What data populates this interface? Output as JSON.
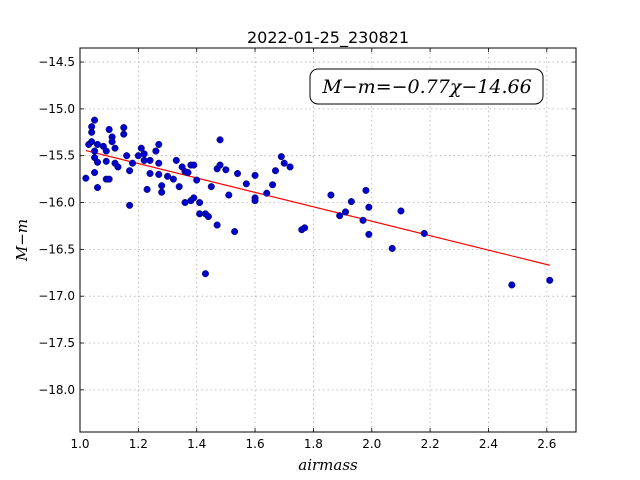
{
  "chart_data": {
    "type": "scatter",
    "title": "2022-01-25_230821",
    "xlabel": "airmass",
    "ylabel": "M−m",
    "xlim": [
      1.0,
      2.7
    ],
    "ylim": [
      -18.45,
      -14.35
    ],
    "y_inverted": true,
    "grid": true,
    "x_ticks": [
      1.0,
      1.2,
      1.4,
      1.6,
      1.8,
      2.0,
      2.2,
      2.4,
      2.6
    ],
    "x_tick_labels": [
      "1.0",
      "1.2",
      "1.4",
      "1.6",
      "1.8",
      "2.0",
      "2.2",
      "2.4",
      "2.6"
    ],
    "y_ticks": [
      -14.5,
      -15.0,
      -15.5,
      -16.0,
      -16.5,
      -17.0,
      -17.5,
      -18.0
    ],
    "y_tick_labels": [
      "−14.5",
      "−15.0",
      "−15.5",
      "−16.0",
      "−16.5",
      "−17.0",
      "−17.5",
      "−18.0"
    ],
    "annotation": "M−m=−0.77χ−14.66",
    "fit": {
      "slope": -0.77,
      "intercept": -14.66,
      "x_range": [
        1.02,
        2.61
      ],
      "color": "#ff0000"
    },
    "series": [
      {
        "marker_color": "#0000cc",
        "points": [
          [
            1.02,
            -15.74
          ],
          [
            1.03,
            -15.38
          ],
          [
            1.04,
            -15.25
          ],
          [
            1.04,
            -15.19
          ],
          [
            1.05,
            -15.12
          ],
          [
            1.04,
            -15.35
          ],
          [
            1.05,
            -15.45
          ],
          [
            1.05,
            -15.52
          ],
          [
            1.06,
            -15.57
          ],
          [
            1.06,
            -15.38
          ],
          [
            1.05,
            -15.68
          ],
          [
            1.06,
            -15.84
          ],
          [
            1.08,
            -15.4
          ],
          [
            1.09,
            -15.45
          ],
          [
            1.09,
            -15.56
          ],
          [
            1.09,
            -15.75
          ],
          [
            1.1,
            -15.22
          ],
          [
            1.11,
            -15.3
          ],
          [
            1.11,
            -15.35
          ],
          [
            1.12,
            -15.42
          ],
          [
            1.12,
            -15.58
          ],
          [
            1.13,
            -15.62
          ],
          [
            1.1,
            -15.75
          ],
          [
            1.15,
            -15.2
          ],
          [
            1.15,
            -15.27
          ],
          [
            1.16,
            -15.5
          ],
          [
            1.17,
            -15.66
          ],
          [
            1.18,
            -15.58
          ],
          [
            1.17,
            -16.03
          ],
          [
            1.2,
            -15.5
          ],
          [
            1.21,
            -15.42
          ],
          [
            1.22,
            -15.48
          ],
          [
            1.22,
            -15.55
          ],
          [
            1.23,
            -15.86
          ],
          [
            1.24,
            -15.69
          ],
          [
            1.24,
            -15.55
          ],
          [
            1.26,
            -15.45
          ],
          [
            1.27,
            -15.38
          ],
          [
            1.27,
            -15.58
          ],
          [
            1.27,
            -15.7
          ],
          [
            1.28,
            -15.82
          ],
          [
            1.28,
            -15.89
          ],
          [
            1.3,
            -15.72
          ],
          [
            1.32,
            -15.75
          ],
          [
            1.33,
            -15.55
          ],
          [
            1.34,
            -15.83
          ],
          [
            1.35,
            -15.62
          ],
          [
            1.36,
            -15.67
          ],
          [
            1.36,
            -16.0
          ],
          [
            1.37,
            -15.68
          ],
          [
            1.38,
            -15.6
          ],
          [
            1.38,
            -15.98
          ],
          [
            1.39,
            -15.95
          ],
          [
            1.39,
            -15.6
          ],
          [
            1.4,
            -15.76
          ],
          [
            1.41,
            -16.0
          ],
          [
            1.41,
            -16.12
          ],
          [
            1.43,
            -16.12
          ],
          [
            1.44,
            -16.15
          ],
          [
            1.43,
            -16.76
          ],
          [
            1.45,
            -15.83
          ],
          [
            1.47,
            -15.64
          ],
          [
            1.48,
            -15.6
          ],
          [
            1.48,
            -15.33
          ],
          [
            1.47,
            -16.24
          ],
          [
            1.5,
            -15.65
          ],
          [
            1.51,
            -15.92
          ],
          [
            1.53,
            -16.31
          ],
          [
            1.54,
            -15.69
          ],
          [
            1.57,
            -15.8
          ],
          [
            1.6,
            -15.71
          ],
          [
            1.6,
            -15.95
          ],
          [
            1.6,
            -15.98
          ],
          [
            1.64,
            -15.9
          ],
          [
            1.66,
            -15.81
          ],
          [
            1.67,
            -15.66
          ],
          [
            1.69,
            -15.51
          ],
          [
            1.7,
            -15.58
          ],
          [
            1.72,
            -15.62
          ],
          [
            1.76,
            -16.29
          ],
          [
            1.77,
            -16.27
          ],
          [
            1.86,
            -15.92
          ],
          [
            1.89,
            -16.14
          ],
          [
            1.91,
            -16.1
          ],
          [
            1.93,
            -15.99
          ],
          [
            1.97,
            -16.19
          ],
          [
            1.98,
            -15.87
          ],
          [
            1.99,
            -16.05
          ],
          [
            1.99,
            -16.34
          ],
          [
            2.07,
            -16.49
          ],
          [
            2.1,
            -16.09
          ],
          [
            2.18,
            -16.33
          ],
          [
            2.48,
            -16.88
          ],
          [
            2.61,
            -16.83
          ]
        ]
      }
    ]
  }
}
